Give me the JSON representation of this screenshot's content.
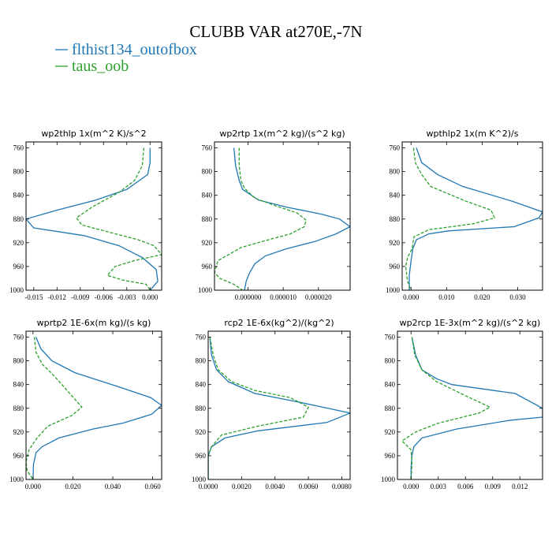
{
  "figure": {
    "title": "CLUBB VAR at270E,-7N",
    "legend": [
      {
        "label": "flthist134_outofbox",
        "color": "#1f77b4",
        "dash": "solid"
      },
      {
        "label": "taus_oob",
        "color": "#2ca02c",
        "dash": "dashed"
      }
    ]
  },
  "chart_data": [
    {
      "type": "line",
      "title": "wp2thlp  1x(m^2 K)/s^2",
      "xlim": [
        -0.016,
        0.0015
      ],
      "ylim": [
        1000,
        750
      ],
      "xticks": [
        -0.015,
        -0.012,
        -0.009,
        -0.006,
        -0.003,
        0.0
      ],
      "xtick_labels": [
        "-0.015",
        "-0.012",
        "-0.009",
        "-0.006",
        "-0.003",
        "0.000"
      ],
      "yticks": [
        760,
        800,
        840,
        880,
        920,
        960,
        1000
      ],
      "ytick_labels": [
        "760",
        "800",
        "840",
        "880",
        "920",
        "960",
        "1000"
      ],
      "series": [
        {
          "name": "flthist134_outofbox",
          "points": [
            [
              0.0,
              760
            ],
            [
              0.0,
              785
            ],
            [
              -0.0003,
              805
            ],
            [
              -0.003,
              830
            ],
            [
              -0.007,
              848
            ],
            [
              -0.012,
              865
            ],
            [
              -0.016,
              880
            ],
            [
              -0.015,
              895
            ],
            [
              -0.0085,
              908
            ],
            [
              -0.004,
              925
            ],
            [
              -0.001,
              945
            ],
            [
              0.0008,
              965
            ],
            [
              0.001,
              985
            ],
            [
              0.0,
              1000
            ]
          ]
        },
        {
          "name": "taus_oob",
          "points": [
            [
              -0.0008,
              760
            ],
            [
              -0.001,
              790
            ],
            [
              -0.002,
              815
            ],
            [
              -0.004,
              835
            ],
            [
              -0.0075,
              860
            ],
            [
              -0.0095,
              878
            ],
            [
              -0.0088,
              890
            ],
            [
              -0.005,
              903
            ],
            [
              -0.0015,
              915
            ],
            [
              0.0005,
              925
            ],
            [
              0.0015,
              940
            ],
            [
              -0.002,
              950
            ],
            [
              -0.0045,
              960
            ],
            [
              -0.0055,
              975
            ],
            [
              -0.0035,
              983
            ],
            [
              -0.0005,
              990
            ],
            [
              0.0,
              1000
            ]
          ]
        }
      ]
    },
    {
      "type": "line",
      "title": "wp2rtp  1x(m^2 kg)/(s^2 kg)",
      "xlim": [
        -9.5e-06,
        2.9e-05
      ],
      "ylim": [
        1000,
        750
      ],
      "xticks": [
        0.0,
        1e-05,
        2e-05
      ],
      "xtick_labels": [
        "0.000000",
        "0.000010",
        "0.000020"
      ],
      "yticks": [
        760,
        800,
        840,
        880,
        920,
        960,
        1000
      ],
      "ytick_labels": [
        "760",
        "800",
        "840",
        "880",
        "920",
        "960",
        "1000"
      ],
      "series": [
        {
          "name": "flthist134_outofbox",
          "points": [
            [
              -4e-06,
              760
            ],
            [
              -3.5e-06,
              790
            ],
            [
              -2.5e-06,
              815
            ],
            [
              -1.5e-06,
              830
            ],
            [
              3e-06,
              848
            ],
            [
              1.1e-05,
              860
            ],
            [
              2.1e-05,
              872
            ],
            [
              2.6e-05,
              880
            ],
            [
              2.9e-05,
              893
            ],
            [
              2.5e-05,
              905
            ],
            [
              1.9e-05,
              918
            ],
            [
              1.1e-05,
              930
            ],
            [
              5e-06,
              942
            ],
            [
              2e-06,
              955
            ],
            [
              5e-07,
              970
            ],
            [
              -5e-07,
              985
            ],
            [
              -1e-06,
              1000
            ]
          ]
        },
        {
          "name": "taus_oob",
          "points": [
            [
              -2.5e-06,
              760
            ],
            [
              -2.5e-06,
              790
            ],
            [
              -2e-06,
              815
            ],
            [
              -1e-06,
              828
            ],
            [
              2e-06,
              845
            ],
            [
              8e-06,
              858
            ],
            [
              1.4e-05,
              870
            ],
            [
              1.65e-05,
              882
            ],
            [
              1.6e-05,
              893
            ],
            [
              1.2e-05,
              905
            ],
            [
              4e-06,
              918
            ],
            [
              -2e-06,
              928
            ],
            [
              -5.5e-06,
              940
            ],
            [
              -8.5e-06,
              950
            ],
            [
              -9.5e-06,
              970
            ],
            [
              -8e-06,
              980
            ],
            [
              -4e-06,
              990
            ],
            [
              -1.5e-06,
              1000
            ]
          ]
        }
      ]
    },
    {
      "type": "line",
      "title": "wpthlp2  1x(m K^2)/s",
      "xlim": [
        -0.0025,
        0.037
      ],
      "ylim": [
        1000,
        750
      ],
      "xticks": [
        0.0,
        0.01,
        0.02,
        0.03
      ],
      "xtick_labels": [
        "0.000",
        "0.010",
        "0.020",
        "0.030"
      ],
      "yticks": [
        760,
        800,
        840,
        880,
        920,
        960,
        1000
      ],
      "ytick_labels": [
        "760",
        "800",
        "840",
        "880",
        "920",
        "960",
        "1000"
      ],
      "series": [
        {
          "name": "flthist134_outofbox",
          "points": [
            [
              0.0015,
              760
            ],
            [
              0.003,
              785
            ],
            [
              0.0075,
              805
            ],
            [
              0.0145,
              825
            ],
            [
              0.0285,
              850
            ],
            [
              0.037,
              868
            ],
            [
              0.036,
              878
            ],
            [
              0.029,
              893
            ],
            [
              0.0105,
              900
            ],
            [
              0.005,
              905
            ],
            [
              0.0015,
              915
            ],
            [
              0.0005,
              930
            ],
            [
              0.0,
              950
            ],
            [
              -0.0005,
              975
            ],
            [
              -0.0005,
              1000
            ]
          ]
        },
        {
          "name": "taus_oob",
          "points": [
            [
              0.0007,
              760
            ],
            [
              0.0012,
              785
            ],
            [
              0.003,
              805
            ],
            [
              0.0055,
              825
            ],
            [
              0.0155,
              850
            ],
            [
              0.0225,
              865
            ],
            [
              0.0235,
              878
            ],
            [
              0.0175,
              888
            ],
            [
              0.005,
              898
            ],
            [
              0.0008,
              910
            ],
            [
              0.0003,
              930
            ],
            [
              -0.001,
              945
            ],
            [
              -0.0015,
              960
            ],
            [
              -0.001,
              985
            ],
            [
              0.0,
              1000
            ]
          ]
        }
      ]
    },
    {
      "type": "line",
      "title": "wprtp2  1E-6x(m kg)/(s kg)",
      "xlim": [
        -0.0035,
        0.0645
      ],
      "ylim": [
        1000,
        750
      ],
      "xticks": [
        0.0,
        0.02,
        0.04,
        0.06
      ],
      "xtick_labels": [
        "0.000",
        "0.020",
        "0.040",
        "0.060"
      ],
      "yticks": [
        760,
        800,
        840,
        880,
        920,
        960,
        1000
      ],
      "ytick_labels": [
        "760",
        "800",
        "840",
        "880",
        "920",
        "960",
        "1000"
      ],
      "series": [
        {
          "name": "flthist134_outofbox",
          "points": [
            [
              0.0015,
              760
            ],
            [
              0.004,
              780
            ],
            [
              0.0095,
              800
            ],
            [
              0.021,
              820
            ],
            [
              0.044,
              845
            ],
            [
              0.059,
              862
            ],
            [
              0.0645,
              875
            ],
            [
              0.0595,
              890
            ],
            [
              0.045,
              905
            ],
            [
              0.03,
              915
            ],
            [
              0.013,
              930
            ],
            [
              0.0045,
              945
            ],
            [
              0.0015,
              955
            ],
            [
              0.0002,
              975
            ],
            [
              0.0,
              1000
            ]
          ]
        },
        {
          "name": "taus_oob",
          "points": [
            [
              0.0007,
              760
            ],
            [
              0.0015,
              785
            ],
            [
              0.0045,
              805
            ],
            [
              0.0105,
              825
            ],
            [
              0.0185,
              855
            ],
            [
              0.0245,
              878
            ],
            [
              0.0195,
              892
            ],
            [
              0.0075,
              910
            ],
            [
              0.002,
              930
            ],
            [
              -0.002,
              950
            ],
            [
              -0.0035,
              970
            ],
            [
              -0.003,
              985
            ],
            [
              0.0,
              1000
            ]
          ]
        }
      ]
    },
    {
      "type": "line",
      "title": "rcp2  1E-6x(kg^2)/(kg^2)",
      "xlim": [
        0.0,
        0.0085
      ],
      "ylim": [
        1000,
        750
      ],
      "xticks": [
        0.0,
        0.002,
        0.004,
        0.006,
        0.008
      ],
      "xtick_labels": [
        "0.0000",
        "0.0020",
        "0.0040",
        "0.0060",
        "0.0080"
      ],
      "yticks": [
        760,
        800,
        840,
        880,
        920,
        960,
        1000
      ],
      "ytick_labels": [
        "760",
        "800",
        "840",
        "880",
        "920",
        "960",
        "1000"
      ],
      "series": [
        {
          "name": "flthist134_outofbox",
          "points": [
            [
              0.0001,
              760
            ],
            [
              0.0002,
              790
            ],
            [
              0.0005,
              815
            ],
            [
              0.0012,
              835
            ],
            [
              0.0028,
              855
            ],
            [
              0.0055,
              870
            ],
            [
              0.0085,
              888
            ],
            [
              0.0071,
              904
            ],
            [
              0.003,
              918
            ],
            [
              0.001,
              930
            ],
            [
              0.0002,
              945
            ],
            [
              0.0,
              960
            ],
            [
              0.0,
              1000
            ]
          ]
        },
        {
          "name": "taus_oob",
          "points": [
            [
              0.0001,
              760
            ],
            [
              0.0003,
              790
            ],
            [
              0.0006,
              815
            ],
            [
              0.0014,
              835
            ],
            [
              0.0028,
              850
            ],
            [
              0.0049,
              862
            ],
            [
              0.006,
              878
            ],
            [
              0.0057,
              895
            ],
            [
              0.003,
              910
            ],
            [
              0.0008,
              925
            ],
            [
              0.0002,
              945
            ],
            [
              0.0,
              960
            ],
            [
              0.0,
              1000
            ]
          ]
        }
      ]
    },
    {
      "type": "line",
      "title": "wp2rcp  1E-3x(m^2 kg)/(s^2 kg)",
      "xlim": [
        -0.0015,
        0.0145
      ],
      "ylim": [
        1000,
        750
      ],
      "xticks": [
        0.0,
        0.003,
        0.006,
        0.009,
        0.012
      ],
      "xtick_labels": [
        "0.000",
        "0.003",
        "0.006",
        "0.009",
        "0.012"
      ],
      "yticks": [
        760,
        800,
        840,
        880,
        920,
        960,
        1000
      ],
      "ytick_labels": [
        "760",
        "800",
        "840",
        "880",
        "920",
        "960",
        "1000"
      ],
      "series": [
        {
          "name": "flthist134_outofbox",
          "points": [
            [
              0.0001,
              760
            ],
            [
              0.0005,
              790
            ],
            [
              0.0012,
              815
            ],
            [
              0.0028,
              830
            ],
            [
              0.0045,
              840
            ],
            [
              0.0115,
              855
            ],
            [
              0.0145,
              880
            ],
            [
              0.0145,
              895
            ],
            [
              0.011,
              900
            ],
            [
              0.005,
              915
            ],
            [
              0.0012,
              930
            ],
            [
              0.0003,
              945
            ],
            [
              0.0001,
              960
            ],
            [
              0.0,
              980
            ],
            [
              0.0,
              1000
            ]
          ]
        },
        {
          "name": "taus_oob",
          "points": [
            [
              0.0001,
              760
            ],
            [
              0.0004,
              790
            ],
            [
              0.0012,
              815
            ],
            [
              0.0028,
              835
            ],
            [
              0.0055,
              855
            ],
            [
              0.0087,
              878
            ],
            [
              0.0075,
              888
            ],
            [
              0.003,
              905
            ],
            [
              0.0005,
              920
            ],
            [
              -0.001,
              935
            ],
            [
              0.0,
              950
            ],
            [
              0.0001,
              975
            ],
            [
              0.0,
              1000
            ]
          ]
        }
      ]
    }
  ]
}
